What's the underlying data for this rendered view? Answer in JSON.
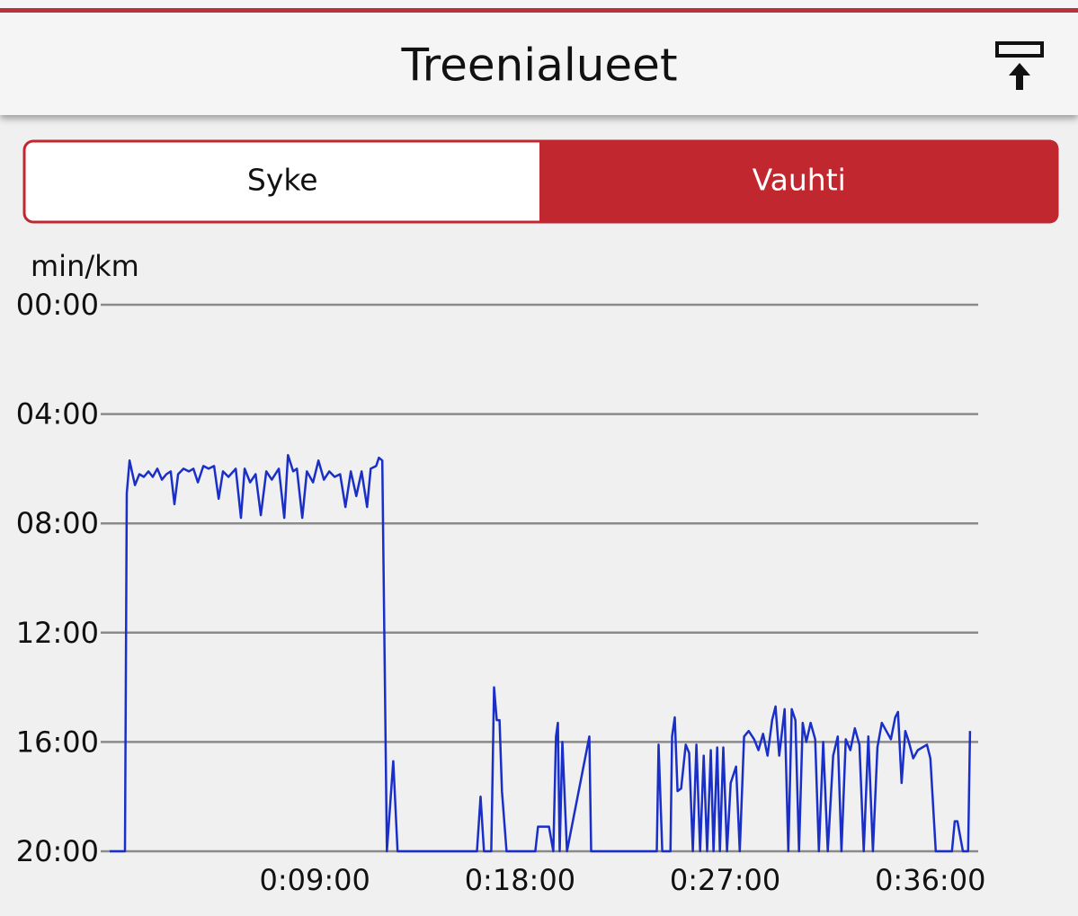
{
  "header": {
    "title": "Treenialueet"
  },
  "tabs": [
    "Syke",
    "Vauhti"
  ],
  "selected_tab": 1,
  "chart_data": {
    "type": "line",
    "y_label": "min/km",
    "color": "#1a2fc8",
    "grid": true,
    "xlim": [
      0,
      38.1
    ],
    "xticks": [
      {
        "value": 9,
        "label": "0:09:00"
      },
      {
        "value": 18,
        "label": "0:18:00"
      },
      {
        "value": 27,
        "label": "0:27:00"
      },
      {
        "value": 36,
        "label": "0:36:00"
      }
    ],
    "ylim": [
      20,
      0
    ],
    "yticks": [
      {
        "value": 0,
        "label": "00:00"
      },
      {
        "value": 4,
        "label": "04:00"
      },
      {
        "value": 8,
        "label": "08:00"
      },
      {
        "value": 12,
        "label": "12:00"
      },
      {
        "value": 16,
        "label": "16:00"
      },
      {
        "value": 20,
        "label": "20:00"
      }
    ],
    "x": [
      0.0,
      0.67,
      0.75,
      0.87,
      1.11,
      1.3,
      1.5,
      1.7,
      1.89,
      2.09,
      2.29,
      2.49,
      2.68,
      2.84,
      3.0,
      3.24,
      3.47,
      3.67,
      3.87,
      4.11,
      4.34,
      4.58,
      4.78,
      4.97,
      5.21,
      5.53,
      5.76,
      5.92,
      6.16,
      6.4,
      6.63,
      6.87,
      7.11,
      7.42,
      7.66,
      7.82,
      8.05,
      8.21,
      8.45,
      8.65,
      8.92,
      9.16,
      9.4,
      9.63,
      9.87,
      10.11,
      10.34,
      10.58,
      10.82,
      11.05,
      11.29,
      11.45,
      11.69,
      11.81,
      11.96,
      12.16,
      12.44,
      12.63,
      16.11,
      16.27,
      16.42,
      16.74,
      16.86,
      16.98,
      17.1,
      17.21,
      17.41,
      18.67,
      18.79,
      19.27,
      19.46,
      19.58,
      19.66,
      19.74,
      19.86,
      20.06,
      21.04,
      21.12,
      24.0,
      24.08,
      24.24,
      24.6,
      24.67,
      24.79,
      24.91,
      25.07,
      25.27,
      25.42,
      25.58,
      25.74,
      25.9,
      26.06,
      26.21,
      26.37,
      26.49,
      26.65,
      26.77,
      26.92,
      27.08,
      27.24,
      27.48,
      27.64,
      27.83,
      28.03,
      28.27,
      28.46,
      28.66,
      28.86,
      29.06,
      29.21,
      29.37,
      29.61,
      29.77,
      29.92,
      30.08,
      30.24,
      30.4,
      30.56,
      30.75,
      30.95,
      31.11,
      31.3,
      31.5,
      31.74,
      31.94,
      32.1,
      32.29,
      32.49,
      32.69,
      32.89,
      33.08,
      33.28,
      33.48,
      33.68,
      33.87,
      34.07,
      34.27,
      34.46,
      34.58,
      34.74,
      34.9,
      35.06,
      35.25,
      35.45,
      35.85,
      36.0,
      36.24,
      36.95,
      37.07,
      37.19,
      37.43,
      37.66,
      37.74
    ],
    "values": [
      20,
      20,
      6.9,
      5.7,
      6.6,
      6.2,
      6.3,
      6.1,
      6.3,
      6.0,
      6.4,
      6.2,
      6.1,
      7.3,
      6.2,
      6.0,
      6.1,
      6.0,
      6.5,
      5.9,
      6.0,
      5.9,
      7.1,
      6.1,
      6.3,
      6.0,
      7.8,
      6.0,
      6.5,
      6.2,
      7.7,
      6.1,
      6.4,
      6.0,
      7.8,
      5.5,
      6.1,
      6.0,
      7.8,
      6.1,
      6.5,
      5.7,
      6.4,
      6.1,
      6.3,
      6.2,
      7.4,
      6.1,
      7.0,
      6.1,
      7.4,
      6.0,
      5.9,
      5.6,
      5.7,
      20,
      16.7,
      20,
      20,
      18.0,
      20,
      20,
      14.0,
      15.2,
      15.2,
      17.8,
      20,
      20,
      19.1,
      19.1,
      20,
      15.8,
      15.3,
      20,
      16.0,
      20,
      15.8,
      20,
      20,
      16.1,
      20,
      20,
      15.8,
      15.1,
      17.8,
      17.7,
      16.1,
      16.4,
      20,
      16.1,
      20,
      16.5,
      20,
      16.3,
      20,
      16.2,
      20,
      16.2,
      20,
      17.5,
      16.9,
      20,
      15.8,
      15.6,
      15.9,
      16.3,
      15.7,
      16.5,
      15.2,
      14.7,
      16.5,
      14.8,
      20,
      14.8,
      15.2,
      20,
      15.3,
      16.0,
      15.3,
      15.9,
      20,
      16.0,
      20,
      16.5,
      15.8,
      20,
      15.9,
      16.3,
      15.5,
      16.1,
      20,
      15.8,
      20,
      16.2,
      15.3,
      15.6,
      15.9,
      15.1,
      14.9,
      17.5,
      15.6,
      16.0,
      16.6,
      16.3,
      16.1,
      16.6,
      20,
      20,
      18.9,
      18.9,
      20,
      20,
      15.6
    ]
  }
}
